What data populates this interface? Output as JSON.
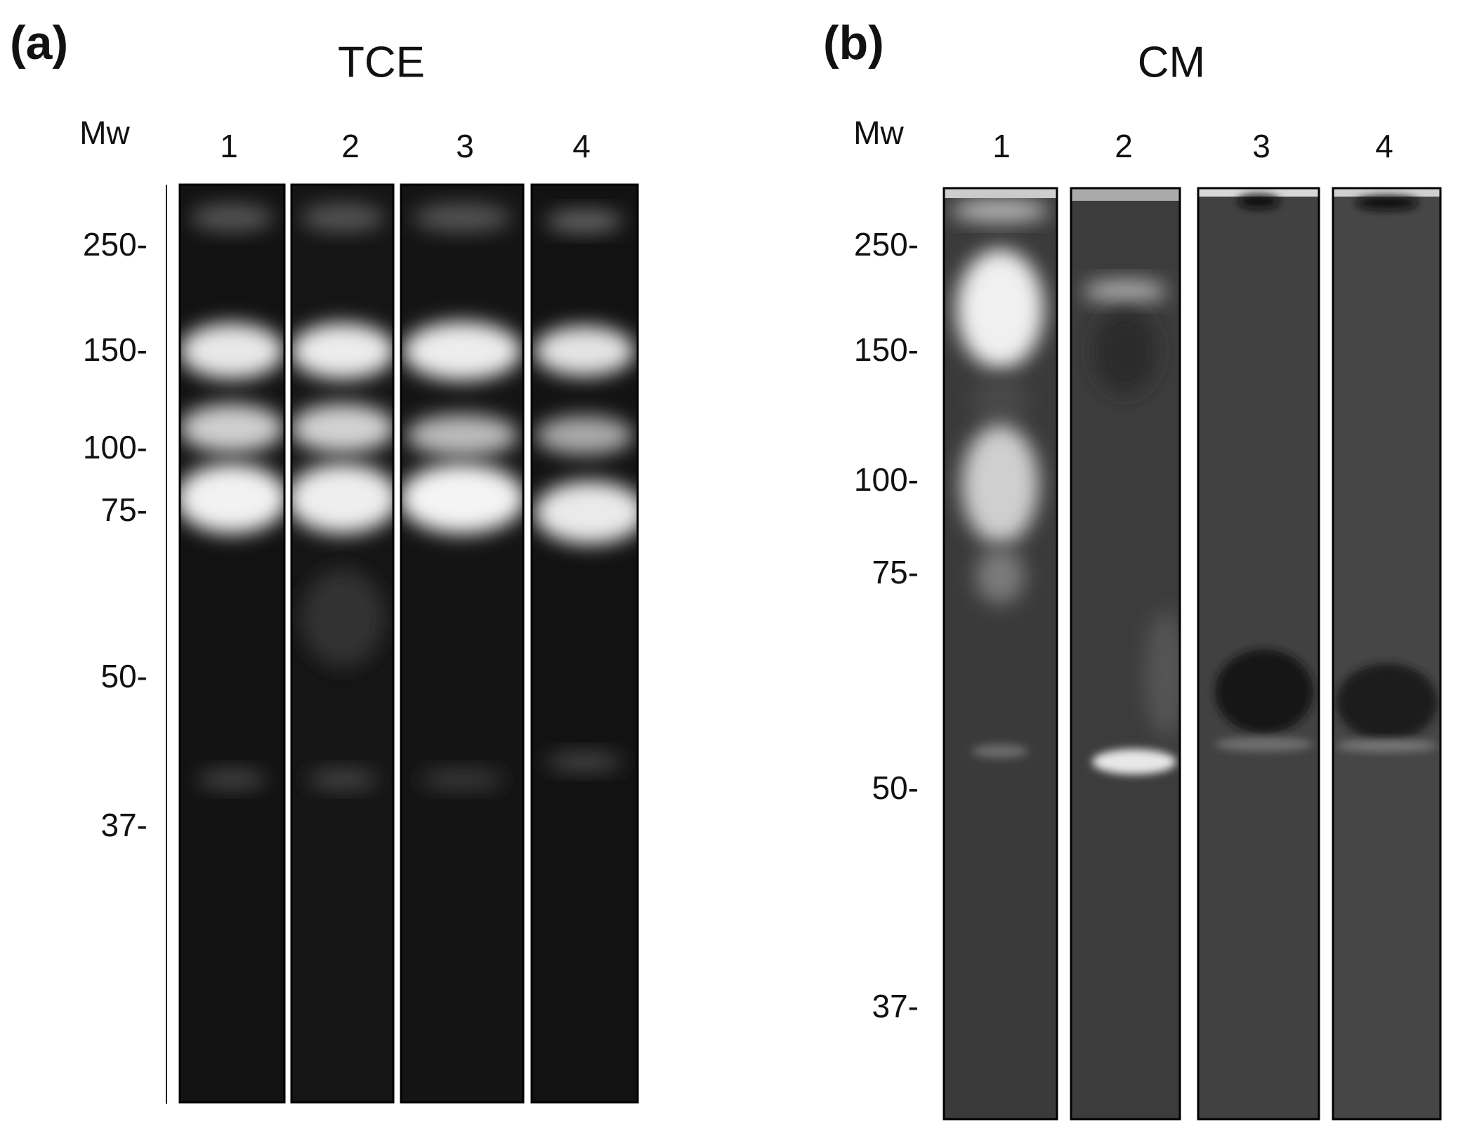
{
  "panels": [
    {
      "label": "(a)",
      "title": "TCE",
      "mw_header": "Mw",
      "lanes": [
        "1",
        "2",
        "3",
        "4"
      ],
      "markers": [
        "250-",
        "150-",
        "100-",
        "75-",
        "50-",
        "37-"
      ]
    },
    {
      "label": "(b)",
      "title": "CM",
      "mw_header": "Mw",
      "lanes": [
        "1",
        "2",
        "3",
        "4"
      ],
      "markers": [
        "250-",
        "150-",
        "100-",
        "75-",
        "50-",
        "37-"
      ]
    }
  ]
}
